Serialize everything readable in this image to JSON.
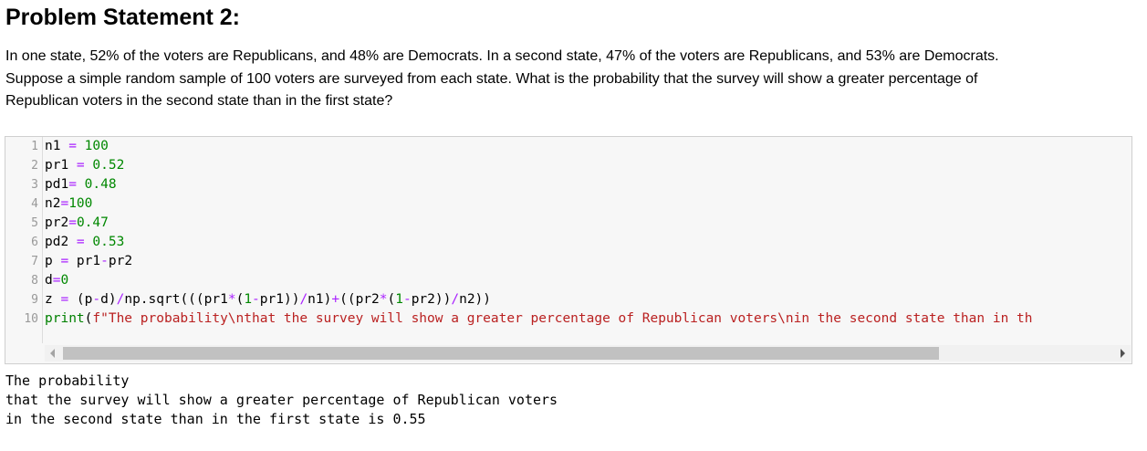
{
  "heading": "Problem Statement 2:",
  "problem": {
    "line1": "In one state, 52% of the voters are Republicans, and 48% are Democrats. In a second state, 47% of the voters are Republicans, and 53% are Democrats.",
    "line2": "Suppose a simple random sample of 100 voters are surveyed from each state. What is the probability that the survey will show a greater percentage of",
    "line3": "Republican voters in the second state than in the first state?"
  },
  "code_cell": {
    "line_numbers": [
      "1",
      "2",
      "3",
      "4",
      "5",
      "6",
      "7",
      "8",
      "9",
      "10"
    ],
    "lines": [
      [
        "n1 ",
        "=",
        " ",
        "100",
        ""
      ],
      [
        "pr1 ",
        "=",
        " ",
        "0.52",
        ""
      ],
      [
        "pd1",
        "=",
        " ",
        "0.48",
        ""
      ],
      [
        "n2",
        "=",
        "",
        "100",
        ""
      ],
      [
        "pr2",
        "=",
        "",
        "0.47",
        ""
      ],
      [
        "pd2 ",
        "=",
        " ",
        "0.53",
        ""
      ],
      [
        "p ",
        "=",
        " pr1",
        "-",
        "pr2"
      ],
      [
        "d",
        "=",
        "",
        "0",
        ""
      ]
    ],
    "line9": {
      "t1": "z ",
      "t2": "=",
      "t3": " (p",
      "t4": "-",
      "t5": "d)",
      "t6": "/",
      "t7": "np.sqrt(((pr1",
      "t8": "*",
      "t9": "(",
      "t10": "1",
      "t11": "-",
      "t12": "pr1))",
      "t13": "/",
      "t14": "n1)",
      "t15": "+",
      "t16": "((pr2",
      "t17": "*",
      "t18": "(",
      "t19": "1",
      "t20": "-",
      "t21": "pr2))",
      "t22": "/",
      "t23": "n2))"
    },
    "line10": {
      "func": "print",
      "paren": "(",
      "str": "f\"The probability\\nthat the survey will show a greater percentage of Republican voters\\nin the second state than in th"
    }
  },
  "output": {
    "lines": [
      "The probability",
      "that the survey will show a greater percentage of Republican voters",
      "in the second state than in the first state is 0.55"
    ]
  }
}
